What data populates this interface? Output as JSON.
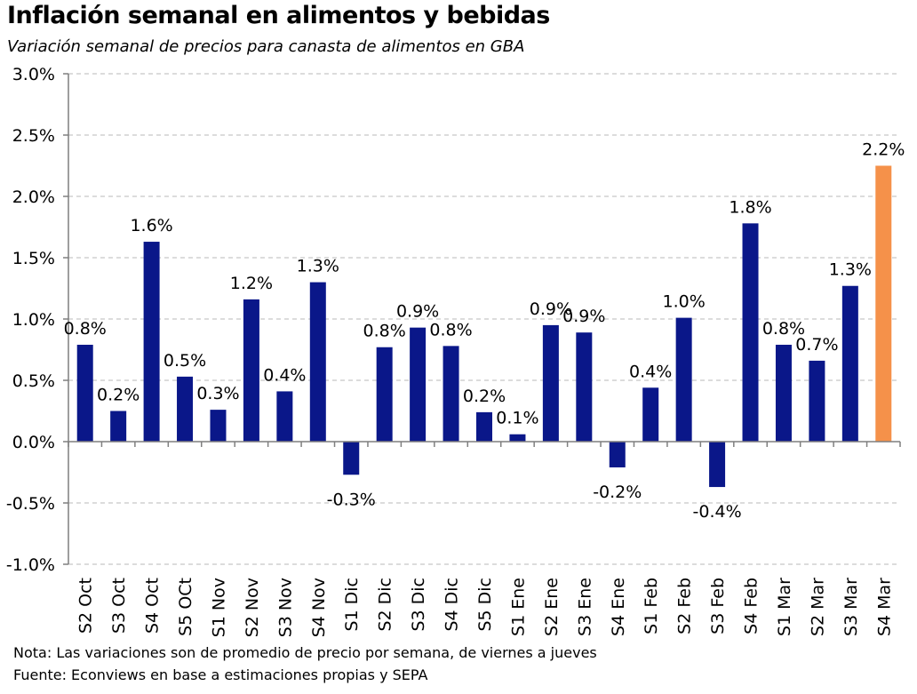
{
  "header": {
    "title": "Inflación semanal en alimentos y bebidas",
    "subtitle": "Variación semanal de precios para canasta de alimentos en GBA"
  },
  "footer": {
    "note": "Nota: Las variaciones son de promedio de precio por semana, de viernes a jueves",
    "source": "Fuente: Econviews en base a estimaciones propias y SEPA"
  },
  "chart_data": {
    "type": "bar",
    "title": "Inflación semanal en alimentos y bebidas",
    "xlabel": "",
    "ylabel": "",
    "ylim": [
      -1.0,
      3.0
    ],
    "yticks": [
      -1.0,
      -0.5,
      0.0,
      0.5,
      1.0,
      1.5,
      2.0,
      2.5,
      3.0
    ],
    "ytick_labels": [
      "-1.0%",
      "-0.5%",
      "0.0%",
      "0.5%",
      "1.0%",
      "1.5%",
      "2.0%",
      "2.5%",
      "3.0%"
    ],
    "grid": true,
    "categories": [
      "S2 Oct",
      "S3 Oct",
      "S4 Oct",
      "S5 OCt",
      "S1 Nov",
      "S2 Nov",
      "S3 Nov",
      "S4 Nov",
      "S1 Dic",
      "S2 Dic",
      "S3 Dic",
      "S4 Dic",
      "S5 Dic",
      "S1 Ene",
      "S2 Ene",
      "S3 Ene",
      "S4 Ene",
      "S1 Feb",
      "S2 Feb",
      "S3 Feb",
      "S4 Feb",
      "S1 Mar",
      "S2 Mar",
      "S3 Mar",
      "S4 Mar"
    ],
    "values": [
      0.79,
      0.25,
      1.63,
      0.53,
      0.26,
      1.16,
      0.41,
      1.3,
      -0.27,
      0.77,
      0.93,
      0.78,
      0.24,
      0.06,
      0.95,
      0.89,
      -0.21,
      0.44,
      1.01,
      -0.37,
      1.78,
      0.79,
      0.66,
      1.27,
      2.25
    ],
    "data_labels": [
      "0.8%",
      "0.2%",
      "1.6%",
      "0.5%",
      "0.3%",
      "1.2%",
      "0.4%",
      "1.3%",
      "-0.3%",
      "0.8%",
      "0.9%",
      "0.8%",
      "0.2%",
      "0.1%",
      "0.9%",
      "0.9%",
      "-0.2%",
      "0.4%",
      "1.0%",
      "-0.4%",
      "1.8%",
      "0.8%",
      "0.7%",
      "1.3%",
      "2.2%"
    ],
    "colors": {
      "default": "#0a1789",
      "highlight": "#f5914a",
      "grid": "#c8c8c8",
      "axis": "#7f7f7f"
    },
    "highlight_index": 24
  }
}
